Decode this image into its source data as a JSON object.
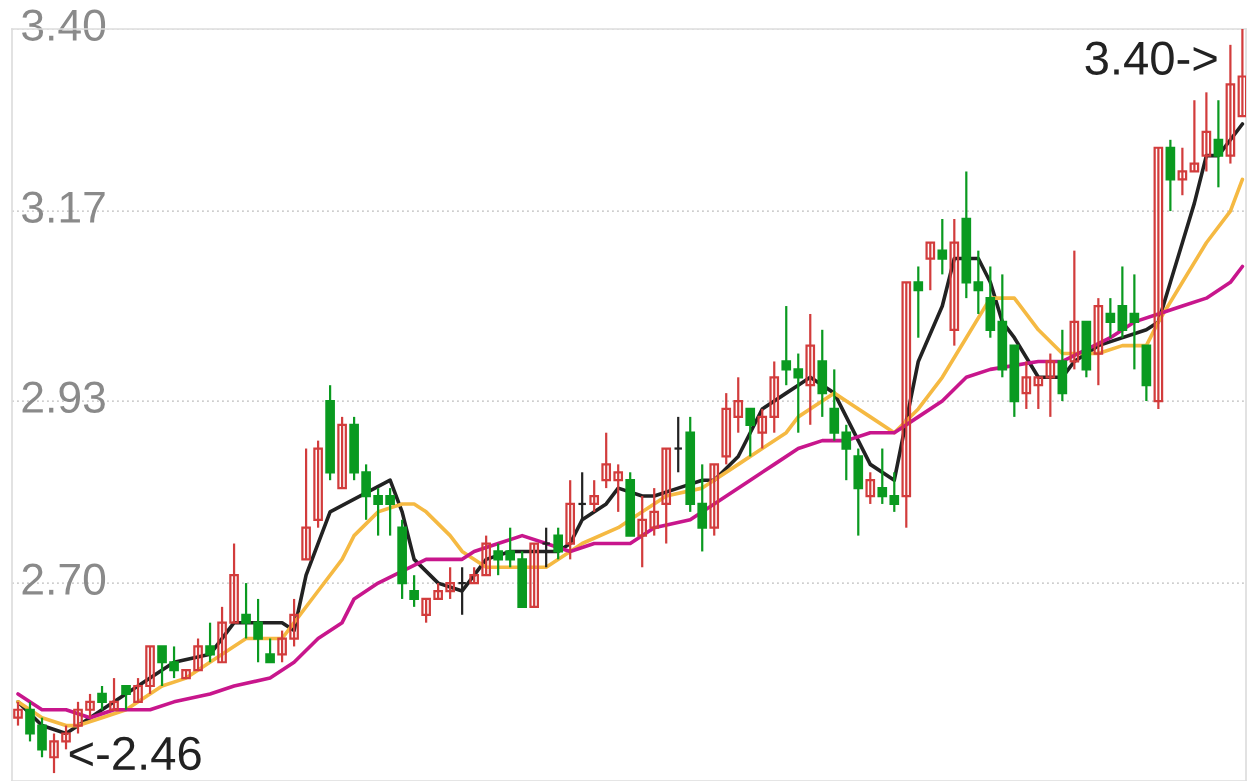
{
  "chart_data": {
    "type": "candlestick",
    "categories": [
      null,
      null,
      null,
      null,
      null,
      null,
      null,
      null,
      null,
      null,
      null,
      null,
      null,
      null,
      null,
      null,
      null,
      null,
      null,
      null,
      null,
      null,
      null,
      null,
      null,
      null,
      null,
      null,
      null,
      null,
      null,
      null,
      null,
      null,
      null,
      null,
      null,
      null,
      null,
      null,
      null,
      null,
      null,
      null,
      null,
      null,
      null,
      null,
      null,
      null,
      null,
      null,
      null,
      null,
      null,
      null,
      null,
      null,
      null,
      null,
      null,
      null,
      null,
      null,
      null,
      null,
      null,
      null,
      null,
      null,
      null,
      null,
      null,
      null,
      null,
      null,
      null,
      null,
      null,
      null,
      null,
      null,
      null,
      null,
      null,
      null,
      null,
      null,
      null,
      null,
      null,
      null,
      null,
      null,
      null,
      null,
      null,
      null,
      null,
      null,
      null,
      null,
      null
    ],
    "ohlc": [
      [
        2.53,
        2.55,
        2.52,
        2.54
      ],
      [
        2.54,
        2.55,
        2.5,
        2.51
      ],
      [
        2.52,
        2.53,
        2.48,
        2.49
      ],
      [
        2.48,
        2.51,
        2.46,
        2.5
      ],
      [
        2.5,
        2.52,
        2.49,
        2.51
      ],
      [
        2.52,
        2.55,
        2.51,
        2.54
      ],
      [
        2.54,
        2.56,
        2.53,
        2.55
      ],
      [
        2.56,
        2.57,
        2.54,
        2.55
      ],
      [
        2.54,
        2.58,
        2.54,
        2.55
      ],
      [
        2.57,
        2.57,
        2.54,
        2.56
      ],
      [
        2.55,
        2.58,
        2.55,
        2.57
      ],
      [
        2.57,
        2.62,
        2.56,
        2.62
      ],
      [
        2.62,
        2.62,
        2.57,
        2.6
      ],
      [
        2.6,
        2.62,
        2.58,
        2.59
      ],
      [
        2.58,
        2.59,
        2.58,
        2.59
      ],
      [
        2.59,
        2.63,
        2.59,
        2.62
      ],
      [
        2.62,
        2.65,
        2.6,
        2.61
      ],
      [
        2.6,
        2.67,
        2.6,
        2.65
      ],
      [
        2.65,
        2.75,
        2.65,
        2.71
      ],
      [
        2.66,
        2.7,
        2.63,
        2.65
      ],
      [
        2.65,
        2.68,
        2.6,
        2.63
      ],
      [
        2.61,
        2.63,
        2.6,
        2.6
      ],
      [
        2.61,
        2.64,
        2.6,
        2.63
      ],
      [
        2.63,
        2.68,
        2.62,
        2.66
      ],
      [
        2.73,
        2.87,
        2.73,
        2.77
      ],
      [
        2.78,
        2.88,
        2.77,
        2.87
      ],
      [
        2.93,
        2.95,
        2.83,
        2.84
      ],
      [
        2.82,
        2.91,
        2.82,
        2.9
      ],
      [
        2.9,
        2.91,
        2.83,
        2.84
      ],
      [
        2.84,
        2.85,
        2.78,
        2.81
      ],
      [
        2.81,
        2.82,
        2.76,
        2.8
      ],
      [
        2.81,
        2.82,
        2.76,
        2.8
      ],
      [
        2.77,
        2.78,
        2.68,
        2.7
      ],
      [
        2.69,
        2.71,
        2.67,
        2.68
      ],
      [
        2.66,
        2.68,
        2.65,
        2.68
      ],
      [
        2.68,
        2.7,
        2.68,
        2.69
      ],
      [
        2.69,
        2.72,
        2.68,
        2.7
      ],
      [
        2.7,
        2.72,
        2.66,
        2.7
      ],
      [
        2.7,
        2.72,
        2.7,
        2.71
      ],
      [
        2.71,
        2.76,
        2.71,
        2.75
      ],
      [
        2.74,
        2.75,
        2.71,
        2.73
      ],
      [
        2.74,
        2.77,
        2.72,
        2.73
      ],
      [
        2.73,
        2.74,
        2.67,
        2.67
      ],
      [
        2.67,
        2.75,
        2.67,
        2.75
      ],
      [
        2.75,
        2.77,
        2.72,
        2.75
      ],
      [
        2.76,
        2.77,
        2.73,
        2.74
      ],
      [
        2.75,
        2.83,
        2.73,
        2.8
      ],
      [
        2.8,
        2.84,
        2.78,
        2.8
      ],
      [
        2.8,
        2.83,
        2.79,
        2.81
      ],
      [
        2.83,
        2.89,
        2.82,
        2.85
      ],
      [
        2.83,
        2.85,
        2.79,
        2.84
      ],
      [
        2.83,
        2.84,
        2.76,
        2.76
      ],
      [
        2.76,
        2.81,
        2.72,
        2.78
      ],
      [
        2.77,
        2.82,
        2.76,
        2.79
      ],
      [
        2.8,
        2.87,
        2.75,
        2.87
      ],
      [
        2.87,
        2.91,
        2.84,
        2.87
      ],
      [
        2.89,
        2.91,
        2.79,
        2.8
      ],
      [
        2.8,
        2.85,
        2.74,
        2.77
      ],
      [
        2.77,
        2.85,
        2.76,
        2.85
      ],
      [
        2.86,
        2.94,
        2.85,
        2.92
      ],
      [
        2.91,
        2.96,
        2.89,
        2.93
      ],
      [
        2.92,
        2.92,
        2.86,
        2.9
      ],
      [
        2.89,
        2.92,
        2.87,
        2.91
      ],
      [
        2.91,
        2.98,
        2.89,
        2.96
      ],
      [
        2.98,
        3.05,
        2.95,
        2.97
      ],
      [
        2.97,
        2.99,
        2.89,
        2.96
      ],
      [
        2.95,
        3.04,
        2.9,
        3.0
      ],
      [
        2.98,
        3.02,
        2.91,
        2.94
      ],
      [
        2.92,
        2.97,
        2.88,
        2.89
      ],
      [
        2.89,
        2.9,
        2.83,
        2.87
      ],
      [
        2.86,
        2.87,
        2.76,
        2.82
      ],
      [
        2.81,
        2.84,
        2.8,
        2.83
      ],
      [
        2.82,
        2.87,
        2.8,
        2.81
      ],
      [
        2.81,
        2.84,
        2.79,
        2.8
      ],
      [
        2.81,
        3.08,
        2.77,
        3.08
      ],
      [
        3.08,
        3.1,
        3.01,
        3.07
      ],
      [
        3.11,
        3.13,
        3.07,
        3.13
      ],
      [
        3.12,
        3.16,
        3.09,
        3.11
      ],
      [
        3.02,
        3.16,
        3.0,
        3.13
      ],
      [
        3.16,
        3.22,
        3.06,
        3.08
      ],
      [
        3.08,
        3.12,
        3.04,
        3.07
      ],
      [
        3.06,
        3.1,
        3.01,
        3.02
      ],
      [
        3.03,
        3.09,
        2.96,
        2.97
      ],
      [
        3.0,
        3.0,
        2.91,
        2.93
      ],
      [
        2.94,
        2.98,
        2.92,
        2.96
      ],
      [
        2.95,
        2.96,
        2.92,
        2.96
      ],
      [
        2.96,
        2.99,
        2.91,
        2.98
      ],
      [
        2.98,
        3.02,
        2.93,
        2.94
      ],
      [
        2.98,
        3.12,
        2.97,
        3.03
      ],
      [
        3.03,
        3.03,
        2.96,
        2.97
      ],
      [
        2.99,
        3.06,
        2.95,
        3.05
      ],
      [
        3.04,
        3.06,
        3.01,
        3.03
      ],
      [
        3.05,
        3.1,
        3.01,
        3.02
      ],
      [
        3.04,
        3.09,
        2.97,
        3.03
      ],
      [
        3.0,
        3.0,
        2.93,
        2.95
      ],
      [
        2.93,
        3.25,
        2.92,
        3.25
      ],
      [
        3.25,
        3.26,
        3.17,
        3.21
      ],
      [
        3.21,
        3.25,
        3.19,
        3.22
      ],
      [
        3.22,
        3.31,
        3.22,
        3.23
      ],
      [
        3.24,
        3.32,
        3.22,
        3.27
      ],
      [
        3.26,
        3.31,
        3.2,
        3.24
      ],
      [
        3.24,
        3.38,
        3.23,
        3.33
      ],
      [
        3.29,
        3.4,
        3.29,
        3.34
      ]
    ],
    "series": [
      {
        "type": "line",
        "color": "#222222",
        "values": [
          2.55,
          null,
          2.52,
          null,
          2.51,
          null,
          2.53,
          null,
          2.55,
          null,
          null,
          2.58,
          null,
          2.6,
          null,
          null,
          2.61,
          null,
          2.65,
          null,
          2.65,
          null,
          2.65,
          2.64,
          2.71,
          null,
          2.79,
          null,
          null,
          null,
          null,
          2.83,
          2.79,
          2.73,
          null,
          2.7,
          null,
          2.69,
          2.71,
          2.73,
          null,
          2.74,
          null,
          2.74,
          null,
          2.74,
          2.75,
          2.78,
          null,
          2.8,
          2.82,
          null,
          2.81,
          2.81,
          null,
          2.82,
          null,
          2.83,
          2.83,
          null,
          2.86,
          2.89,
          2.92,
          null,
          2.94,
          2.95,
          2.96,
          null,
          2.94,
          2.91,
          null,
          2.85,
          null,
          2.83,
          null,
          2.98,
          null,
          3.05,
          3.11,
          null,
          3.11,
          3.08,
          3.03,
          3.01,
          null,
          2.96,
          null,
          2.96,
          2.98,
          null,
          3.0,
          null,
          null,
          null,
          3.02,
          3.03,
          3.08,
          3.13,
          3.18,
          3.24,
          3.24,
          null,
          3.28
        ]
      },
      {
        "type": "line",
        "color": "#f5b942",
        "values": [
          2.55,
          null,
          2.53,
          null,
          2.52,
          2.52,
          null,
          2.53,
          null,
          2.54,
          null,
          null,
          2.57,
          null,
          2.58,
          null,
          null,
          2.61,
          null,
          2.63,
          null,
          null,
          2.63,
          2.65,
          null,
          2.69,
          null,
          2.73,
          2.76,
          null,
          2.79,
          null,
          2.8,
          2.8,
          2.79,
          null,
          2.76,
          2.74,
          null,
          2.72,
          null,
          null,
          null,
          null,
          2.72,
          null,
          2.74,
          2.75,
          null,
          null,
          2.77,
          null,
          2.79,
          null,
          2.81,
          null,
          null,
          2.82,
          null,
          null,
          2.85,
          null,
          2.87,
          null,
          2.89,
          2.91,
          null,
          2.93,
          2.94,
          2.93,
          null,
          2.91,
          null,
          2.89,
          null,
          2.92,
          null,
          2.96,
          null,
          3.01,
          null,
          3.06,
          null,
          3.06,
          null,
          3.02,
          null,
          2.99,
          null,
          null,
          2.99,
          null,
          3.0,
          null,
          3.0,
          3.03,
          null,
          3.08,
          null,
          3.13,
          null,
          3.17,
          3.21
        ]
      },
      {
        "type": "line",
        "color": "#c8168c",
        "values": [
          2.56,
          null,
          2.54,
          null,
          2.54,
          null,
          2.53,
          null,
          2.54,
          null,
          null,
          2.54,
          null,
          2.55,
          null,
          null,
          2.56,
          null,
          2.57,
          null,
          null,
          2.58,
          null,
          2.6,
          null,
          2.63,
          null,
          2.65,
          2.68,
          null,
          2.7,
          null,
          null,
          null,
          2.73,
          null,
          null,
          2.73,
          2.74,
          null,
          2.75,
          null,
          2.76,
          null,
          2.75,
          null,
          2.74,
          null,
          2.75,
          null,
          null,
          2.75,
          null,
          2.77,
          null,
          null,
          2.78,
          null,
          2.8,
          null,
          null,
          2.83,
          null,
          2.85,
          null,
          2.87,
          null,
          2.88,
          null,
          2.88,
          null,
          2.89,
          null,
          2.89,
          null,
          2.91,
          null,
          2.93,
          null,
          2.96,
          null,
          2.97,
          null,
          null,
          null,
          2.98,
          null,
          2.98,
          null,
          null,
          null,
          3.01,
          null,
          3.03,
          null,
          3.04,
          null,
          3.05,
          null,
          3.06,
          null,
          3.08,
          3.1
        ]
      }
    ],
    "ylim": [
      2.45,
      3.4
    ],
    "yticks": [
      {
        "value": 3.4,
        "label": "3.40"
      },
      {
        "value": 3.17,
        "label": "3.17"
      },
      {
        "value": 2.93,
        "label": "2.93"
      },
      {
        "value": 2.7,
        "label": "2.70"
      }
    ],
    "grid": "y",
    "tick_labels": "y",
    "annotations": [
      "3.40->",
      "<-2.46"
    ]
  }
}
